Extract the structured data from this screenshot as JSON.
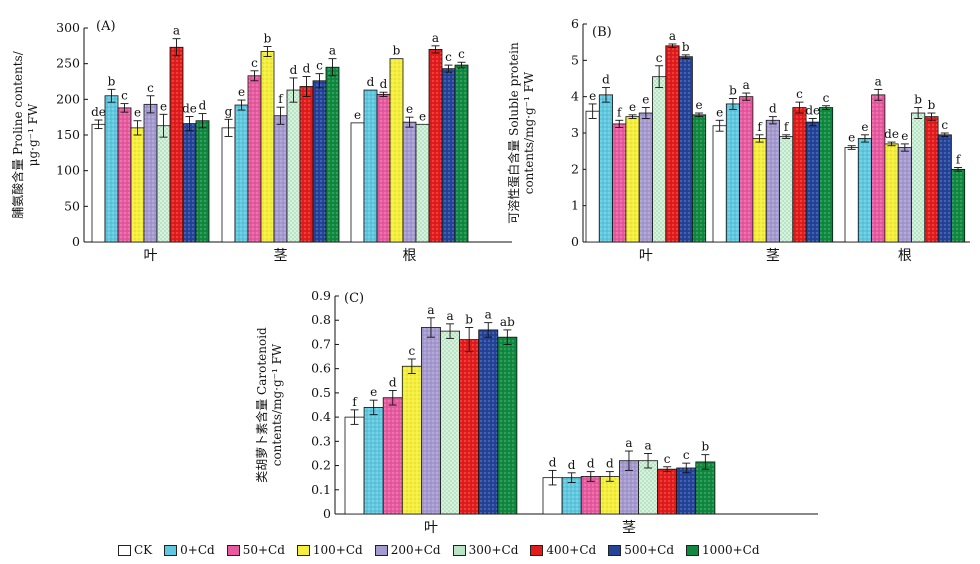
{
  "legend": [
    "CK",
    "0+Cd",
    "50+Cd",
    "100+Cd",
    "200+Cd",
    "300+Cd",
    "400+Cd",
    "500+Cd",
    "1000+Cd"
  ],
  "colors": {
    "CK": "#ffffff",
    "0+Cd": "#5ec8e0",
    "50+Cd": "#e85aa0",
    "100+Cd": "#f6ef3a",
    "200+Cd": "#a59ad0",
    "300+Cd": "#b8e6c4",
    "400+Cd": "#e31b1b",
    "500+Cd": "#24449a",
    "1000+Cd": "#0f8a40"
  },
  "chart_data": [
    {
      "type": "bar",
      "panel_label": "(A)",
      "ylabel": "脯氨酸含量 Proline contents/ μg·g⁻¹ FW",
      "ylim": [
        0,
        300
      ],
      "yticks": [
        "0",
        "50",
        "100",
        "150",
        "200",
        "250",
        "300"
      ],
      "categories": [
        "叶",
        "茎",
        "根"
      ],
      "series": [
        {
          "name": "CK",
          "values": [
            165,
            160,
            167
          ],
          "errors": [
            6,
            12,
            0
          ],
          "letters": [
            "de",
            "g",
            "e"
          ]
        },
        {
          "name": "0+Cd",
          "values": [
            205,
            192,
            213
          ],
          "errors": [
            9,
            7,
            0
          ],
          "letters": [
            "b",
            "e",
            "d"
          ]
        },
        {
          "name": "50+Cd",
          "values": [
            188,
            233,
            207
          ],
          "errors": [
            6,
            7,
            3
          ],
          "letters": [
            "c",
            "c",
            "d"
          ]
        },
        {
          "name": "100+Cd",
          "values": [
            160,
            267,
            257
          ],
          "errors": [
            10,
            7,
            0
          ],
          "letters": [
            "e",
            "b",
            "b"
          ]
        },
        {
          "name": "200+Cd",
          "values": [
            193,
            177,
            168
          ],
          "errors": [
            12,
            12,
            7
          ],
          "letters": [
            "c",
            "f",
            "e"
          ]
        },
        {
          "name": "300+Cd",
          "values": [
            163,
            213,
            165
          ],
          "errors": [
            16,
            17,
            0
          ],
          "letters": [
            "e",
            "d",
            "e"
          ]
        },
        {
          "name": "400+Cd",
          "values": [
            273,
            218,
            270
          ],
          "errors": [
            12,
            14,
            5
          ],
          "letters": [
            "a",
            "d",
            "a"
          ]
        },
        {
          "name": "500+Cd",
          "values": [
            166,
            226,
            243
          ],
          "errors": [
            10,
            10,
            5
          ],
          "letters": [
            "de",
            "c",
            "c"
          ]
        },
        {
          "name": "1000+Cd",
          "values": [
            170,
            245,
            248
          ],
          "errors": [
            10,
            12,
            4
          ],
          "letters": [
            "d",
            "a",
            "c"
          ]
        }
      ]
    },
    {
      "type": "bar",
      "panel_label": "(B)",
      "ylabel": "可溶性蛋白含量 Soluble protein contents/mg·g⁻¹ FW",
      "ylim": [
        0,
        6
      ],
      "yticks": [
        "0",
        "1",
        "2",
        "3",
        "4",
        "5",
        "6"
      ],
      "categories": [
        "叶",
        "茎",
        "根"
      ],
      "series": [
        {
          "name": "CK",
          "values": [
            3.6,
            3.2,
            2.6
          ],
          "errors": [
            0.2,
            0.15,
            0.05
          ],
          "letters": [
            "e",
            "e",
            "e"
          ]
        },
        {
          "name": "0+Cd",
          "values": [
            4.05,
            3.8,
            2.85
          ],
          "errors": [
            0.2,
            0.15,
            0.1
          ],
          "letters": [
            "d",
            "b",
            "e"
          ]
        },
        {
          "name": "50+Cd",
          "values": [
            3.25,
            4.0,
            4.05
          ],
          "errors": [
            0.1,
            0.1,
            0.15
          ],
          "letters": [
            "f",
            "a",
            "a"
          ]
        },
        {
          "name": "100+Cd",
          "values": [
            3.45,
            2.85,
            2.7
          ],
          "errors": [
            0.05,
            0.1,
            0.05
          ],
          "letters": [
            "e",
            "f",
            "de"
          ]
        },
        {
          "name": "200+Cd",
          "values": [
            3.55,
            3.35,
            2.6
          ],
          "errors": [
            0.15,
            0.1,
            0.1
          ],
          "letters": [
            "e",
            "d",
            "e"
          ]
        },
        {
          "name": "300+Cd",
          "values": [
            4.55,
            2.9,
            3.55
          ],
          "errors": [
            0.3,
            0.05,
            0.15
          ],
          "letters": [
            "c",
            "f",
            "b"
          ]
        },
        {
          "name": "400+Cd",
          "values": [
            5.4,
            3.7,
            3.45
          ],
          "errors": [
            0.05,
            0.15,
            0.1
          ],
          "letters": [
            "a",
            "c",
            "b"
          ]
        },
        {
          "name": "500+Cd",
          "values": [
            5.1,
            3.3,
            2.95
          ],
          "errors": [
            0.05,
            0.1,
            0.05
          ],
          "letters": [
            "b",
            "de",
            "c"
          ]
        },
        {
          "name": "1000+Cd",
          "values": [
            3.5,
            3.7,
            2.0
          ],
          "errors": [
            0.05,
            0.05,
            0.05
          ],
          "letters": [
            "e",
            "c",
            "f"
          ]
        }
      ]
    },
    {
      "type": "bar",
      "panel_label": "(C)",
      "ylabel": "类胡萝卜素含量 Carotenoid contents/mg·g⁻¹ FW",
      "ylim": [
        0,
        0.9
      ],
      "yticks": [
        "0",
        "0.1",
        "0.2",
        "0.3",
        "0.4",
        "0.5",
        "0.6",
        "0.7",
        "0.8",
        "0.9"
      ],
      "categories": [
        "叶",
        "茎"
      ],
      "series": [
        {
          "name": "CK",
          "values": [
            0.4,
            0.15
          ],
          "errors": [
            0.03,
            0.03
          ],
          "letters": [
            "f",
            "d"
          ]
        },
        {
          "name": "0+Cd",
          "values": [
            0.44,
            0.15
          ],
          "errors": [
            0.03,
            0.02
          ],
          "letters": [
            "e",
            "d"
          ]
        },
        {
          "name": "50+Cd",
          "values": [
            0.48,
            0.155
          ],
          "errors": [
            0.03,
            0.02
          ],
          "letters": [
            "d",
            "d"
          ]
        },
        {
          "name": "100+Cd",
          "values": [
            0.61,
            0.155
          ],
          "errors": [
            0.03,
            0.02
          ],
          "letters": [
            "c",
            "d"
          ]
        },
        {
          "name": "200+Cd",
          "values": [
            0.77,
            0.22
          ],
          "errors": [
            0.04,
            0.04
          ],
          "letters": [
            "a",
            "a"
          ]
        },
        {
          "name": "300+Cd",
          "values": [
            0.755,
            0.22
          ],
          "errors": [
            0.03,
            0.03
          ],
          "letters": [
            "a",
            "a"
          ]
        },
        {
          "name": "400+Cd",
          "values": [
            0.72,
            0.185
          ],
          "errors": [
            0.05,
            0.01
          ],
          "letters": [
            "b",
            "c"
          ]
        },
        {
          "name": "500+Cd",
          "values": [
            0.76,
            0.19
          ],
          "errors": [
            0.03,
            0.02
          ],
          "letters": [
            "a",
            "c"
          ]
        },
        {
          "name": "1000+Cd",
          "values": [
            0.73,
            0.215
          ],
          "errors": [
            0.03,
            0.03
          ],
          "letters": [
            "ab",
            "b"
          ]
        }
      ]
    }
  ]
}
